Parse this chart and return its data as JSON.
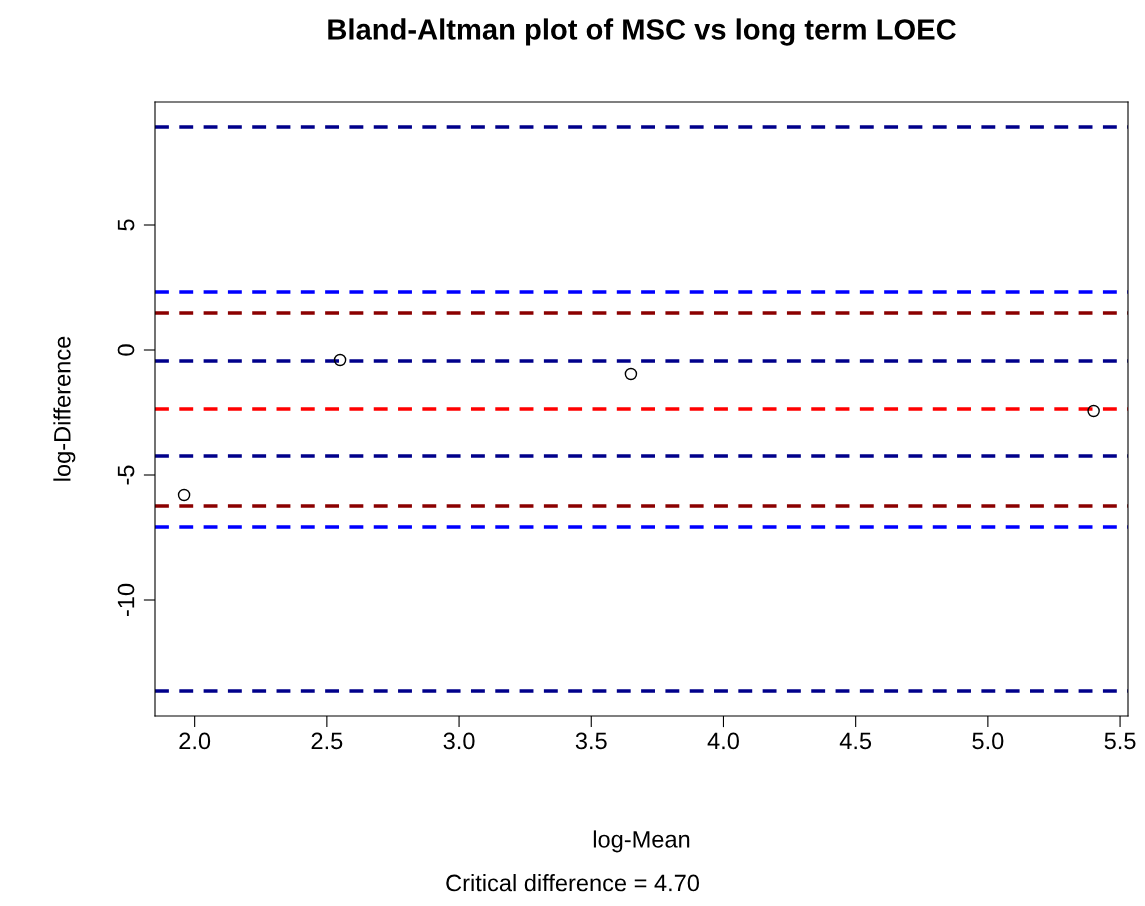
{
  "chart_data": {
    "type": "scatter",
    "title": "Bland-Altman plot of MSC vs long term LOEC",
    "xlabel": "log-Mean",
    "ylabel": "log-Difference",
    "annotations": [
      "Critical difference = 4.70"
    ],
    "x": [
      1.96,
      2.55,
      3.65,
      5.4
    ],
    "series": [
      {
        "color": "#000000",
        "values": [
          -5.8,
          -0.4,
          -0.96,
          -2.44
        ]
      }
    ],
    "marker": "circle",
    "grid": false,
    "xlim": [
      1.85,
      5.53
    ],
    "xticks": [
      {
        "value": 2.0,
        "label": "2.0"
      },
      {
        "value": 2.5,
        "label": "2.5"
      },
      {
        "value": 3.0,
        "label": "3.0"
      },
      {
        "value": 3.5,
        "label": "3.5"
      },
      {
        "value": 4.0,
        "label": "4.0"
      },
      {
        "value": 4.5,
        "label": "4.5"
      },
      {
        "value": 5.0,
        "label": "5.0"
      },
      {
        "value": 5.5,
        "label": "5.5"
      }
    ],
    "ylim": [
      -14.64,
      9.92
    ],
    "yticks": [
      -10,
      -5,
      0,
      5
    ],
    "ref_lines": [
      {
        "axis": "y",
        "value": 8.92,
        "color": "#00008b",
        "line_style": "dashed"
      },
      {
        "axis": "y",
        "value": 2.32,
        "color": "#0000ff",
        "line_style": "dashed"
      },
      {
        "axis": "y",
        "value": 1.48,
        "color": "#8b0000",
        "line_style": "dashed"
      },
      {
        "axis": "y",
        "value": -0.44,
        "color": "#00008b",
        "line_style": "dashed"
      },
      {
        "axis": "y",
        "value": -2.36,
        "color": "#ff0000",
        "line_style": "dashed"
      },
      {
        "axis": "y",
        "value": -4.24,
        "color": "#00008b",
        "line_style": "dashed"
      },
      {
        "axis": "y",
        "value": -6.24,
        "color": "#8b0000",
        "line_style": "dashed"
      },
      {
        "axis": "y",
        "value": -7.08,
        "color": "#0000ff",
        "line_style": "dashed"
      },
      {
        "axis": "y",
        "value": -13.64,
        "color": "#00008b",
        "line_style": "dashed"
      }
    ]
  }
}
